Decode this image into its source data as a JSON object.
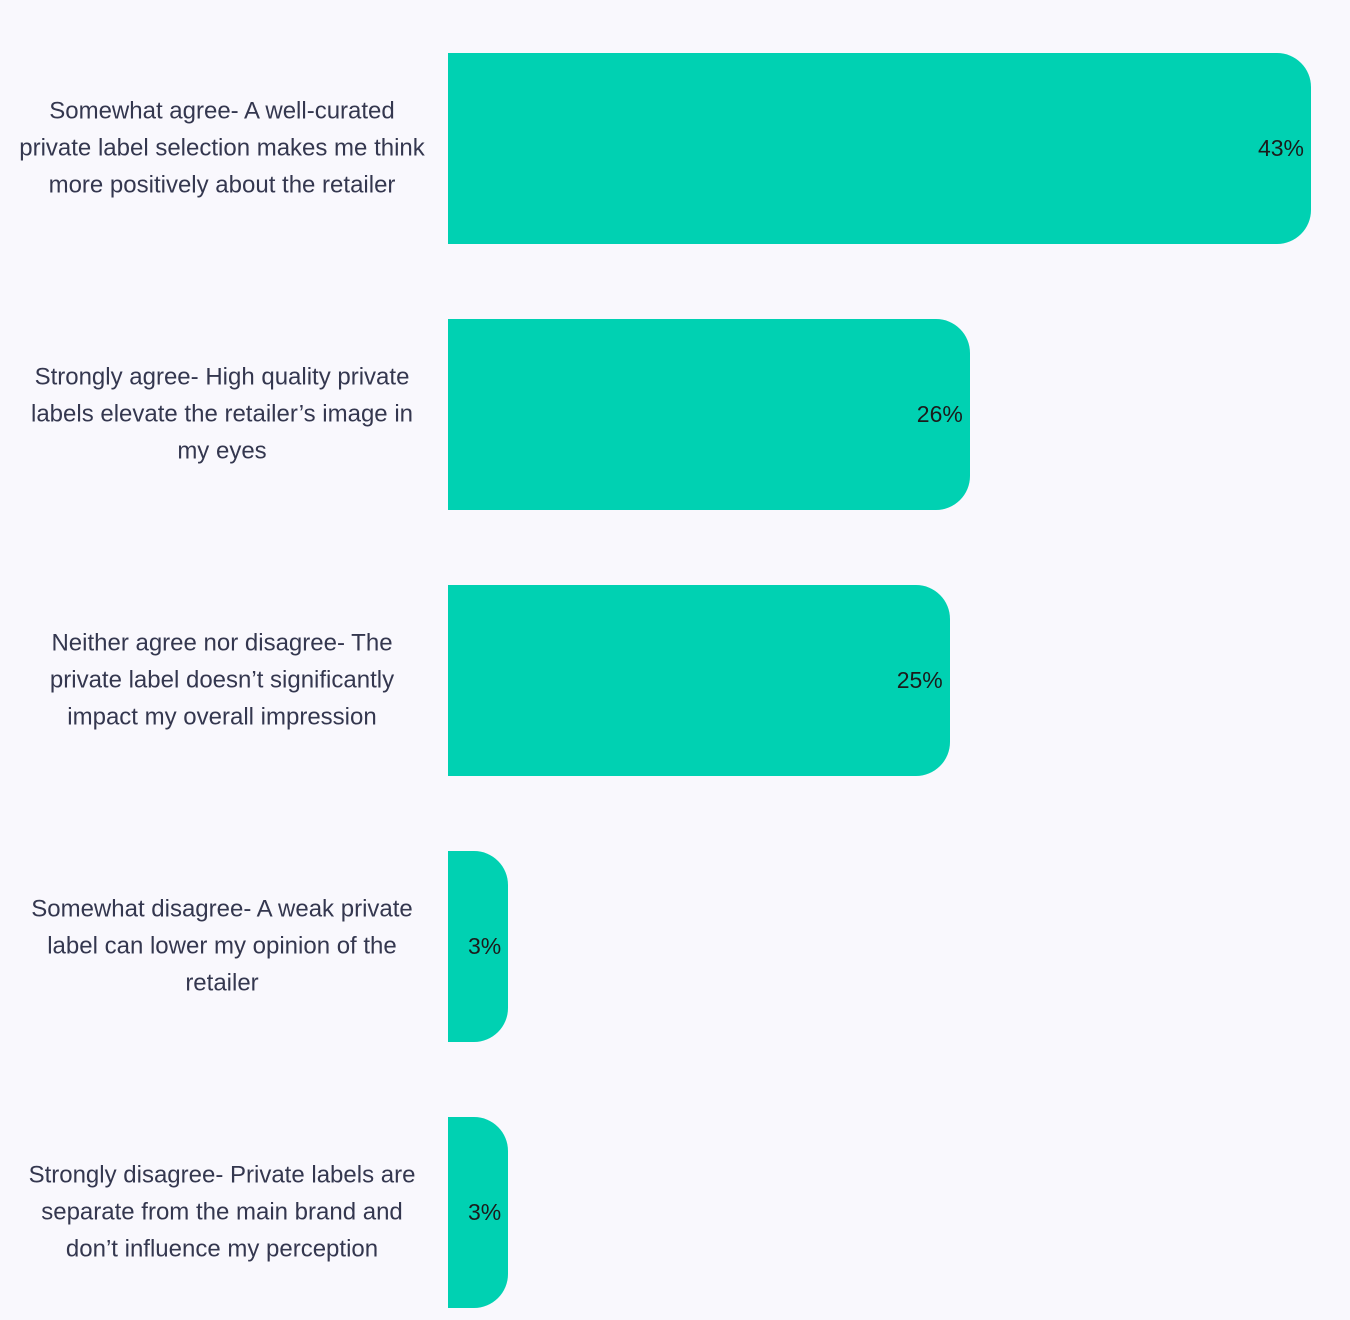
{
  "chart_data": {
    "type": "bar",
    "orientation": "horizontal",
    "categories": [
      "Somewhat agree- A well-curated private label selection makes me think more positively about the retailer",
      "Strongly agree- High quality private labels elevate the retailer’s image in my eyes",
      "Neither agree nor disagree- The private label doesn’t significantly impact my overall impression",
      "Somewhat disagree- A weak private label can lower my opinion of the retailer",
      "Strongly disagree- Private labels are separate from the main brand and don’t influence my perception"
    ],
    "values": [
      43,
      26,
      25,
      3,
      3
    ],
    "value_labels": [
      "43%",
      "26%",
      "25%",
      "3%",
      "3%"
    ],
    "unit": "%",
    "xlim": [
      0,
      43
    ],
    "bar_color": "#00d1b2",
    "grid": false,
    "legend": "none"
  }
}
